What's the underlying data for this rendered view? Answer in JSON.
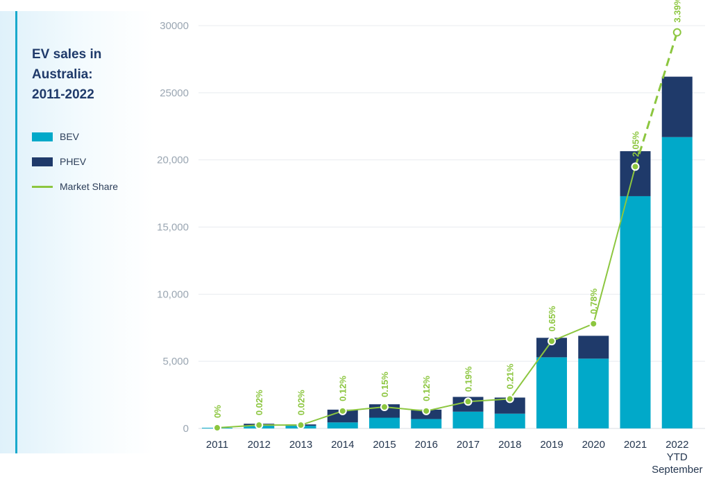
{
  "title": {
    "line1": "EV sales in",
    "line2": "Australia:",
    "line3": "2011-2022"
  },
  "legend": {
    "bev": "BEV",
    "phev": "PHEV",
    "market_share": "Market Share"
  },
  "colors": {
    "bev": "#01a9c9",
    "phev": "#1f3a6a",
    "market_share": "#8cc63f",
    "accent": "#19a9cc"
  },
  "chart_data": {
    "type": "bar",
    "stacked": true,
    "title": "EV sales in Australia: 2011-2022",
    "categories": [
      "2011",
      "2012",
      "2013",
      "2014",
      "2015",
      "2016",
      "2017",
      "2018",
      "2019",
      "2020",
      "2021",
      "2022 YTD September"
    ],
    "category_labels": [
      [
        "2011"
      ],
      [
        "2012"
      ],
      [
        "2013"
      ],
      [
        "2014"
      ],
      [
        "2015"
      ],
      [
        "2016"
      ],
      [
        "2017"
      ],
      [
        "2018"
      ],
      [
        "2019"
      ],
      [
        "2020"
      ],
      [
        "2021"
      ],
      [
        "2022",
        "YTD",
        "September"
      ]
    ],
    "series": [
      {
        "name": "BEV",
        "values": [
          50,
          200,
          200,
          450,
          800,
          700,
          1250,
          1100,
          5300,
          5200,
          17300,
          21700
        ]
      },
      {
        "name": "PHEV",
        "values": [
          0,
          150,
          100,
          950,
          1000,
          700,
          1100,
          1200,
          1450,
          1700,
          3350,
          4500
        ]
      }
    ],
    "market_share": {
      "name": "Market Share",
      "labels": [
        "0%",
        "0.02%",
        "0.02%",
        "0.12%",
        "0.15%",
        "0.12%",
        "0.19%",
        "0.21%",
        "0.65%",
        "0.78%",
        "2.05%",
        "3.39%"
      ],
      "plotted_values": [
        50,
        250,
        250,
        1300,
        1600,
        1300,
        2000,
        2200,
        6500,
        7800,
        19500,
        29500
      ],
      "last_segment_dashed": true
    },
    "y_ticks": [
      {
        "value": 0,
        "label": "0"
      },
      {
        "value": 5000,
        "label": "5,000"
      },
      {
        "value": 10000,
        "label": "10,000"
      },
      {
        "value": 15000,
        "label": "15,000"
      },
      {
        "value": 20000,
        "label": "20,000"
      },
      {
        "value": 25000,
        "label": "25000"
      },
      {
        "value": 30000,
        "label": "30000"
      }
    ],
    "ylim": [
      0,
      30000
    ],
    "grid": true,
    "legend_position": "left"
  }
}
